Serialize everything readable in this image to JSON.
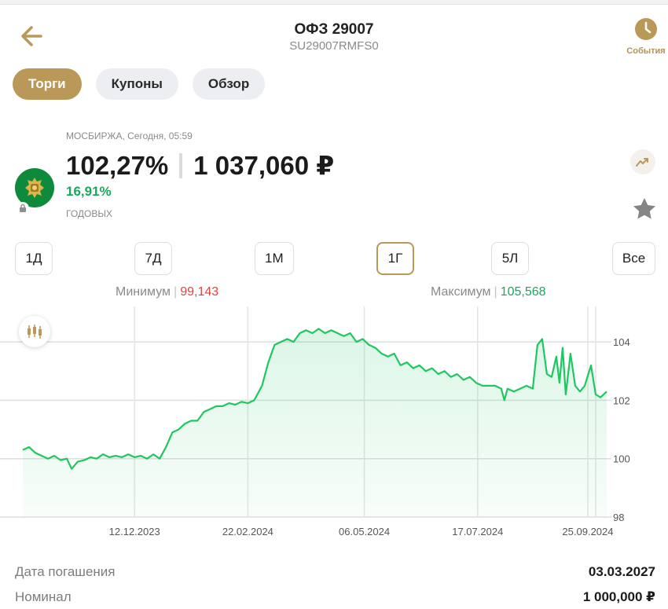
{
  "header": {
    "title": "ОФЗ 29007",
    "subtitle": "SU29007RMFS0",
    "events_label": "События"
  },
  "tabs": [
    {
      "label": "Торги",
      "active": true
    },
    {
      "label": "Купоны",
      "active": false
    },
    {
      "label": "Обзор",
      "active": false
    }
  ],
  "quote": {
    "exchange": "МОСБИРЖА, Сегодня, 05:59",
    "price_percent": "102,27%",
    "price_rub": "1 037,060 ₽",
    "yield": "16,91%",
    "yield_label": "ГОДОВЫХ"
  },
  "periods": [
    {
      "label": "1Д",
      "active": false
    },
    {
      "label": "7Д",
      "active": false
    },
    {
      "label": "1М",
      "active": false
    },
    {
      "label": "1Г",
      "active": true
    },
    {
      "label": "5Л",
      "active": false
    },
    {
      "label": "Все",
      "active": false
    }
  ],
  "minmax": {
    "min_label": "Минимум",
    "min_value": "99,143",
    "max_label": "Максимум",
    "max_value": "105,568"
  },
  "colors": {
    "accent": "#b99858",
    "line": "#1fc760",
    "positive": "#1aa85a",
    "negative": "#e0443f"
  },
  "chart_data": {
    "type": "area",
    "ylim": [
      98,
      105
    ],
    "y_ticks": [
      "98",
      "100",
      "102",
      "104"
    ],
    "x_ticks": [
      "12.12.2023",
      "22.02.2024",
      "06.05.2024",
      "17.07.2024",
      "25.09.2024"
    ],
    "x_range": [
      "2023-10-02",
      "2024-10-07"
    ],
    "grid": true,
    "series": [
      {
        "points": [
          [
            "2023-10-02",
            100.3
          ],
          [
            "2023-10-06",
            100.4
          ],
          [
            "2023-10-10",
            100.2
          ],
          [
            "2023-10-14",
            100.1
          ],
          [
            "2023-10-18",
            100.0
          ],
          [
            "2023-10-22",
            100.1
          ],
          [
            "2023-10-26",
            99.95
          ],
          [
            "2023-10-30",
            100.0
          ],
          [
            "2023-11-02",
            99.65
          ],
          [
            "2023-11-06",
            99.9
          ],
          [
            "2023-11-10",
            99.95
          ],
          [
            "2023-11-14",
            100.05
          ],
          [
            "2023-11-18",
            100.0
          ],
          [
            "2023-11-22",
            100.15
          ],
          [
            "2023-11-26",
            100.05
          ],
          [
            "2023-11-30",
            100.1
          ],
          [
            "2023-12-04",
            100.05
          ],
          [
            "2023-12-08",
            100.15
          ],
          [
            "2023-12-12",
            100.05
          ],
          [
            "2023-12-16",
            100.1
          ],
          [
            "2023-12-20",
            100.0
          ],
          [
            "2023-12-24",
            100.15
          ],
          [
            "2023-12-28",
            100.0
          ],
          [
            "2024-01-01",
            100.4
          ],
          [
            "2024-01-05",
            100.9
          ],
          [
            "2024-01-09",
            101.0
          ],
          [
            "2024-01-13",
            101.2
          ],
          [
            "2024-01-17",
            101.3
          ],
          [
            "2024-01-21",
            101.3
          ],
          [
            "2024-01-25",
            101.6
          ],
          [
            "2024-01-29",
            101.7
          ],
          [
            "2024-02-02",
            101.8
          ],
          [
            "2024-02-06",
            101.8
          ],
          [
            "2024-02-10",
            101.9
          ],
          [
            "2024-02-14",
            101.85
          ],
          [
            "2024-02-18",
            101.95
          ],
          [
            "2024-02-22",
            101.9
          ],
          [
            "2024-02-26",
            102.0
          ],
          [
            "2024-03-02",
            102.5
          ],
          [
            "2024-03-06",
            103.3
          ],
          [
            "2024-03-10",
            103.9
          ],
          [
            "2024-03-14",
            104.0
          ],
          [
            "2024-03-18",
            104.1
          ],
          [
            "2024-03-22",
            104.0
          ],
          [
            "2024-03-26",
            104.3
          ],
          [
            "2024-03-30",
            104.4
          ],
          [
            "2024-04-03",
            104.3
          ],
          [
            "2024-04-07",
            104.45
          ],
          [
            "2024-04-11",
            104.3
          ],
          [
            "2024-04-15",
            104.4
          ],
          [
            "2024-04-19",
            104.3
          ],
          [
            "2024-04-23",
            104.2
          ],
          [
            "2024-04-27",
            104.3
          ],
          [
            "2024-05-01",
            104.0
          ],
          [
            "2024-05-05",
            104.1
          ],
          [
            "2024-05-09",
            103.9
          ],
          [
            "2024-05-13",
            103.8
          ],
          [
            "2024-05-17",
            103.6
          ],
          [
            "2024-05-21",
            103.5
          ],
          [
            "2024-05-25",
            103.6
          ],
          [
            "2024-05-29",
            103.2
          ],
          [
            "2024-06-02",
            103.3
          ],
          [
            "2024-06-06",
            103.1
          ],
          [
            "2024-06-10",
            103.2
          ],
          [
            "2024-06-14",
            103.0
          ],
          [
            "2024-06-18",
            103.1
          ],
          [
            "2024-06-22",
            102.9
          ],
          [
            "2024-06-26",
            103.0
          ],
          [
            "2024-06-30",
            102.8
          ],
          [
            "2024-07-04",
            102.9
          ],
          [
            "2024-07-08",
            102.7
          ],
          [
            "2024-07-12",
            102.8
          ],
          [
            "2024-07-16",
            102.6
          ],
          [
            "2024-07-20",
            102.5
          ],
          [
            "2024-07-24",
            102.5
          ],
          [
            "2024-07-28",
            102.5
          ],
          [
            "2024-08-01",
            102.4
          ],
          [
            "2024-08-03",
            102.0
          ],
          [
            "2024-08-05",
            102.4
          ],
          [
            "2024-08-09",
            102.3
          ],
          [
            "2024-08-13",
            102.4
          ],
          [
            "2024-08-17",
            102.5
          ],
          [
            "2024-08-21",
            102.4
          ],
          [
            "2024-08-24",
            103.9
          ],
          [
            "2024-08-27",
            104.1
          ],
          [
            "2024-08-30",
            102.9
          ],
          [
            "2024-09-02",
            102.8
          ],
          [
            "2024-09-05",
            103.5
          ],
          [
            "2024-09-07",
            102.6
          ],
          [
            "2024-09-09",
            103.8
          ],
          [
            "2024-09-11",
            102.2
          ],
          [
            "2024-09-14",
            103.6
          ],
          [
            "2024-09-17",
            102.5
          ],
          [
            "2024-09-20",
            102.3
          ],
          [
            "2024-09-23",
            102.5
          ],
          [
            "2024-09-27",
            103.2
          ],
          [
            "2024-09-30",
            102.2
          ],
          [
            "2024-10-03",
            102.1
          ],
          [
            "2024-10-07",
            102.3
          ]
        ]
      }
    ]
  },
  "details": [
    {
      "label": "Дата погашения",
      "value": "03.03.2027"
    },
    {
      "label": "Номинал",
      "value": "1 000,000 ₽"
    }
  ]
}
